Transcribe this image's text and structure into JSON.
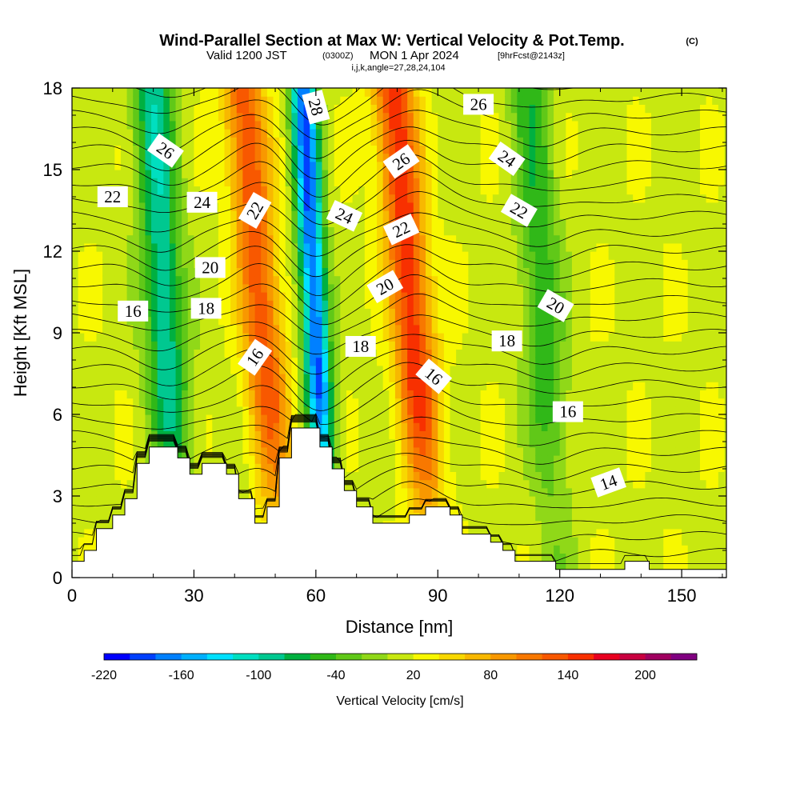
{
  "header": {
    "title": "Wind-Parallel Section at Max W: Vertical Velocity & Pot.Temp.",
    "copyright": "(C)",
    "valid_prefix": "Valid 1200 JST",
    "valid_utc": "(0300Z)",
    "valid_date": "MON 1 Apr 2024",
    "forecast": "[9hrFcst@2143z]",
    "indices": "i,j,k,angle=27,28,24,104"
  },
  "chart_data": {
    "type": "heatmap",
    "xlabel": "Distance [nm]",
    "ylabel": "Height [Kft MSL]",
    "xlim": [
      0,
      161
    ],
    "ylim": [
      0,
      18
    ],
    "x_ticks": [
      "0",
      "30",
      "60",
      "90",
      "120",
      "150"
    ],
    "y_ticks": [
      "0",
      "3",
      "6",
      "9",
      "12",
      "15",
      "18"
    ],
    "colorbar": {
      "label": "Vertical Velocity [cm/s]",
      "min": -220,
      "max": 240,
      "step": 20,
      "tick_labels": [
        "-220",
        "-160",
        "-100",
        "-40",
        "20",
        "80",
        "140",
        "200"
      ],
      "colors": [
        "#0000ff",
        "#0040ff",
        "#0080ff",
        "#00b0ff",
        "#00e0ff",
        "#00dfc0",
        "#00c890",
        "#00b040",
        "#30b818",
        "#60c818",
        "#90d818",
        "#c8e810",
        "#f8f800",
        "#f8d800",
        "#f8b800",
        "#f89800",
        "#f87800",
        "#f85800",
        "#f83000",
        "#e80020",
        "#c80040",
        "#a00060",
        "#800080"
      ]
    },
    "features": [
      {
        "type": "updraft",
        "x_center": 47,
        "peak_w": 120
      },
      {
        "type": "downdraft",
        "x_center": 60,
        "peak_w": -200
      },
      {
        "type": "updraft",
        "x_center": 84,
        "peak_w": 140
      },
      {
        "type": "downdraft",
        "x_center": 23,
        "peak_w": -110
      },
      {
        "type": "downdraft",
        "x_center": 116,
        "peak_w": -70
      }
    ],
    "isentrope_labels": [
      {
        "text": "26",
        "x": 23,
        "y": 15.7,
        "angle": 35
      },
      {
        "text": "22",
        "x": 10,
        "y": 14.0,
        "angle": 0
      },
      {
        "text": "24",
        "x": 32,
        "y": 13.8,
        "angle": 0
      },
      {
        "text": "22",
        "x": 45,
        "y": 13.5,
        "angle": -60
      },
      {
        "text": "28",
        "x": 60,
        "y": 17.3,
        "angle": 75
      },
      {
        "text": "26",
        "x": 81,
        "y": 15.3,
        "angle": -35
      },
      {
        "text": "26",
        "x": 100,
        "y": 17.4,
        "angle": 0
      },
      {
        "text": "24",
        "x": 107,
        "y": 15.4,
        "angle": 35
      },
      {
        "text": "22",
        "x": 110,
        "y": 13.5,
        "angle": 30
      },
      {
        "text": "24",
        "x": 67,
        "y": 13.3,
        "angle": 25
      },
      {
        "text": "22",
        "x": 81,
        "y": 12.8,
        "angle": -25
      },
      {
        "text": "20",
        "x": 34,
        "y": 11.4,
        "angle": 0
      },
      {
        "text": "20",
        "x": 77,
        "y": 10.7,
        "angle": -30
      },
      {
        "text": "20",
        "x": 119,
        "y": 10.0,
        "angle": 30
      },
      {
        "text": "16",
        "x": 15,
        "y": 9.8,
        "angle": 0
      },
      {
        "text": "18",
        "x": 33,
        "y": 9.9,
        "angle": 0
      },
      {
        "text": "18",
        "x": 71,
        "y": 8.5,
        "angle": 0
      },
      {
        "text": "18",
        "x": 107,
        "y": 8.7,
        "angle": 0
      },
      {
        "text": "16",
        "x": 45,
        "y": 8.1,
        "angle": -55
      },
      {
        "text": "16",
        "x": 89,
        "y": 7.4,
        "angle": 40
      },
      {
        "text": "16",
        "x": 122,
        "y": 6.1,
        "angle": 0
      },
      {
        "text": "14",
        "x": 132,
        "y": 3.5,
        "angle": -20
      }
    ],
    "terrain": [
      [
        0,
        0.6
      ],
      [
        3,
        0.6
      ],
      [
        3,
        1.0
      ],
      [
        6,
        1.0
      ],
      [
        6,
        1.8
      ],
      [
        10,
        1.8
      ],
      [
        10,
        2.3
      ],
      [
        13,
        2.3
      ],
      [
        13,
        2.9
      ],
      [
        16,
        2.9
      ],
      [
        16,
        4.2
      ],
      [
        19,
        4.2
      ],
      [
        19,
        4.8
      ],
      [
        26,
        4.8
      ],
      [
        26,
        4.4
      ],
      [
        29,
        4.4
      ],
      [
        29,
        3.8
      ],
      [
        32,
        3.8
      ],
      [
        32,
        4.2
      ],
      [
        38,
        4.2
      ],
      [
        38,
        3.8
      ],
      [
        41,
        3.8
      ],
      [
        41,
        2.9
      ],
      [
        45,
        2.9
      ],
      [
        45,
        2.0
      ],
      [
        48,
        2.0
      ],
      [
        48,
        2.6
      ],
      [
        51,
        2.6
      ],
      [
        51,
        4.4
      ],
      [
        54,
        4.4
      ],
      [
        54,
        5.5
      ],
      [
        61,
        5.5
      ],
      [
        61,
        4.8
      ],
      [
        64,
        4.8
      ],
      [
        64,
        4.0
      ],
      [
        67,
        4.0
      ],
      [
        67,
        3.2
      ],
      [
        70,
        3.2
      ],
      [
        70,
        2.6
      ],
      [
        74,
        2.6
      ],
      [
        74,
        2.0
      ],
      [
        83,
        2.0
      ],
      [
        83,
        2.3
      ],
      [
        87,
        2.3
      ],
      [
        87,
        2.6
      ],
      [
        93,
        2.6
      ],
      [
        93,
        2.3
      ],
      [
        96,
        2.3
      ],
      [
        96,
        1.6
      ],
      [
        103,
        1.6
      ],
      [
        103,
        1.3
      ],
      [
        106,
        1.3
      ],
      [
        106,
        1.0
      ],
      [
        109,
        1.0
      ],
      [
        109,
        0.6
      ],
      [
        119,
        0.6
      ],
      [
        119,
        0.3
      ],
      [
        136,
        0.3
      ],
      [
        136,
        0.6
      ],
      [
        142,
        0.6
      ],
      [
        142,
        0.3
      ],
      [
        161,
        0.3
      ],
      [
        161,
        0
      ],
      [
        0,
        0
      ]
    ]
  }
}
